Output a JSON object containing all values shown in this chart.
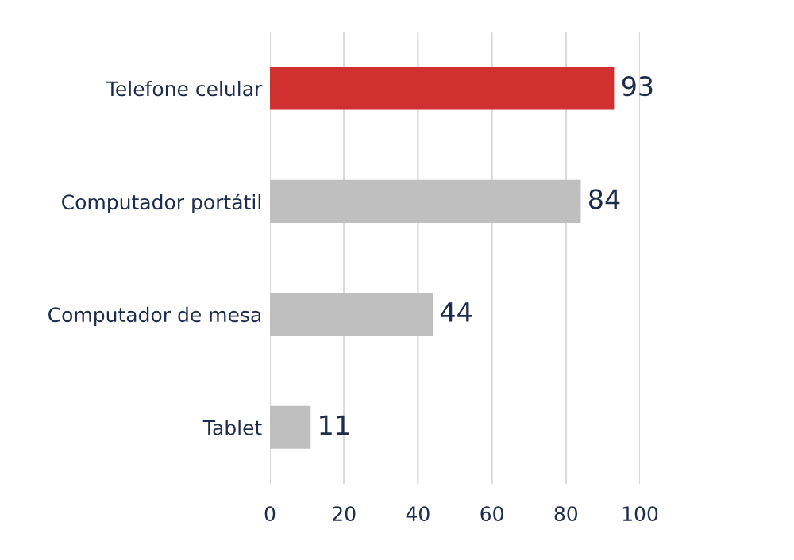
{
  "chart_data": {
    "type": "bar",
    "orientation": "horizontal",
    "categories": [
      "Telefone celular",
      "Computador portátil",
      "Computador de mesa",
      "Tablet"
    ],
    "values": [
      93,
      84,
      44,
      11
    ],
    "colors": [
      "#d03030",
      "#bfbfbf",
      "#bfbfbf",
      "#bfbfbf"
    ],
    "data_labels": true,
    "xlim": [
      0,
      100
    ],
    "xticks": [
      0,
      20,
      40,
      60,
      80,
      100
    ],
    "grid": "x"
  }
}
